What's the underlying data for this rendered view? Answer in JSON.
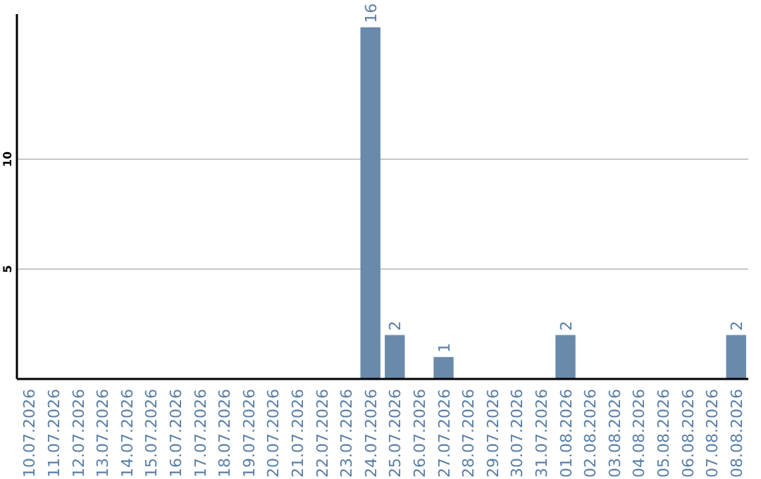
{
  "chart_data": {
    "type": "bar",
    "categories": [
      "10.07.2026",
      "11.07.2026",
      "12.07.2026",
      "13.07.2026",
      "14.07.2026",
      "15.07.2026",
      "16.07.2026",
      "17.07.2026",
      "18.07.2026",
      "19.07.2026",
      "20.07.2026",
      "21.07.2026",
      "22.07.2026",
      "23.07.2026",
      "24.07.2026",
      "25.07.2026",
      "26.07.2026",
      "27.07.2026",
      "28.07.2026",
      "29.07.2026",
      "30.07.2026",
      "31.07.2026",
      "01.08.2026",
      "02.08.2026",
      "03.08.2026",
      "04.08.2026",
      "05.08.2026",
      "06.08.2026",
      "07.08.2026",
      "08.08.2026"
    ],
    "values": [
      null,
      null,
      null,
      null,
      null,
      null,
      null,
      null,
      null,
      null,
      null,
      null,
      null,
      null,
      16,
      2,
      null,
      1,
      null,
      null,
      null,
      null,
      2,
      null,
      null,
      null,
      null,
      null,
      null,
      2
    ],
    "color": "#6a8aab",
    "ylim": [
      0,
      16.6
    ],
    "yticks": [
      5,
      10
    ],
    "grid": "y",
    "data_labels": true
  }
}
